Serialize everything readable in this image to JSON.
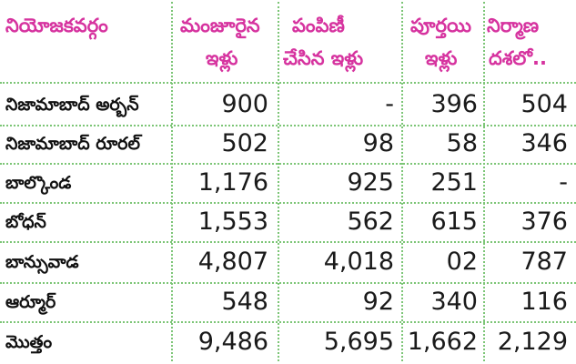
{
  "headers": {
    "constituency": "నియోజకవర్గం",
    "sanctioned": [
      "మంజూరైన",
      "ఇళ్లు"
    ],
    "distributed": [
      "పంపిణీ",
      "చేసిన ఇళ్లు"
    ],
    "completed": [
      "పూర్తయి",
      "ఇళ్లు"
    ],
    "under_construction": [
      "నిర్మాణ",
      "దశలో.."
    ]
  },
  "rows": [
    {
      "name": "నిజామాబాద్ అర్బన్",
      "sanctioned": "900",
      "distributed": "-",
      "completed": "396",
      "under_construction": "504"
    },
    {
      "name": "నిజామాబాద్ రూరల్",
      "sanctioned": "502",
      "distributed": "98",
      "completed": "58",
      "under_construction": "346"
    },
    {
      "name": "బాల్కొండ",
      "sanctioned": "1,176",
      "distributed": "925",
      "completed": "251",
      "under_construction": "-"
    },
    {
      "name": "బోధన్",
      "sanctioned": "1,553",
      "distributed": "562",
      "completed": "615",
      "under_construction": "376"
    },
    {
      "name": "బాన్సువాడ",
      "sanctioned": "4,807",
      "distributed": "4,018",
      "completed": "02",
      "under_construction": "787"
    },
    {
      "name": "ఆర్మూర్",
      "sanctioned": "548",
      "distributed": "92",
      "completed": "340",
      "under_construction": "116"
    },
    {
      "name": "మొత్తం",
      "sanctioned": "9,486",
      "distributed": "5,695",
      "completed": "1,662",
      "under_construction": "2,129"
    }
  ]
}
